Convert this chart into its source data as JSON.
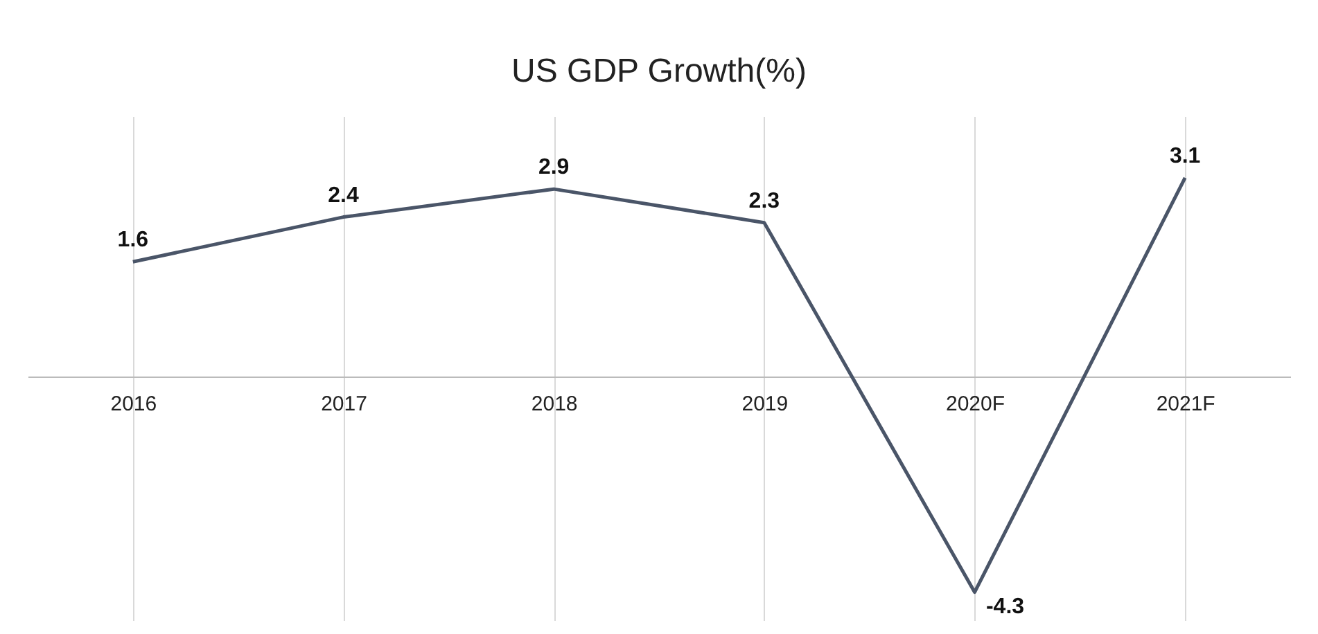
{
  "chart_data": {
    "type": "line",
    "title": "US GDP Growth(%)",
    "categories": [
      "2016",
      "2017",
      "2018",
      "2019",
      "2020F",
      "2021F"
    ],
    "series": [
      {
        "color": "#4a5568",
        "values": [
          1.6,
          2.4,
          2.9,
          2.3,
          -4.3,
          3.1
        ]
      }
    ],
    "ylim": [
      -4.8,
      4.2
    ],
    "data_labels": true,
    "grid": "x",
    "tick_labels": "x",
    "marker": "none",
    "line_style": "solid"
  }
}
